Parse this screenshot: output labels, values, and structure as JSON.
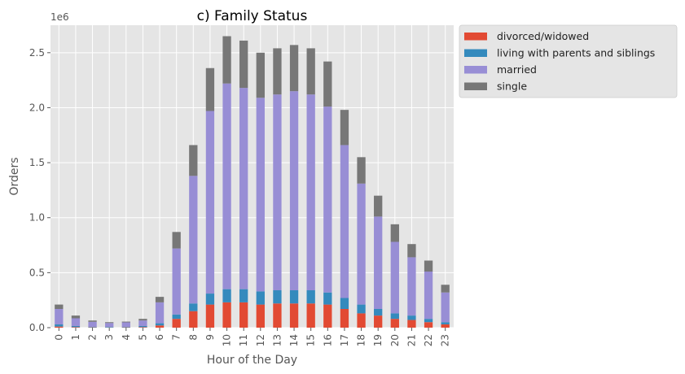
{
  "chart_data": {
    "type": "bar",
    "stacked": true,
    "title": "c) Family Status",
    "xlabel": "Hour of the Day",
    "ylabel": "Orders",
    "y_multiplier_label": "1e6",
    "ylim": [
      0,
      2.75
    ],
    "yticks": [
      0.0,
      0.5,
      1.0,
      1.5,
      2.0,
      2.5
    ],
    "ytick_labels": [
      "0.0",
      "0.5",
      "1.0",
      "1.5",
      "2.0",
      "2.5"
    ],
    "grid": true,
    "legend_position": "outside-top-right",
    "categories": [
      "0",
      "1",
      "2",
      "3",
      "4",
      "5",
      "6",
      "7",
      "8",
      "9",
      "10",
      "11",
      "12",
      "13",
      "14",
      "15",
      "16",
      "17",
      "18",
      "19",
      "20",
      "21",
      "22",
      "23"
    ],
    "series": [
      {
        "name": "divorced/widowed",
        "color": "#E24A33",
        "values": [
          0.01,
          0.005,
          0.003,
          0.002,
          0.003,
          0.005,
          0.02,
          0.08,
          0.15,
          0.21,
          0.23,
          0.23,
          0.21,
          0.22,
          0.22,
          0.22,
          0.21,
          0.17,
          0.13,
          0.11,
          0.08,
          0.07,
          0.05,
          0.03
        ]
      },
      {
        "name": "living with parents and siblings",
        "color": "#348ABD",
        "values": [
          0.02,
          0.01,
          0.005,
          0.005,
          0.005,
          0.01,
          0.02,
          0.04,
          0.07,
          0.1,
          0.12,
          0.12,
          0.12,
          0.12,
          0.12,
          0.12,
          0.11,
          0.1,
          0.08,
          0.06,
          0.05,
          0.04,
          0.03,
          0.02
        ]
      },
      {
        "name": "married",
        "color": "#988ED5",
        "values": [
          0.14,
          0.07,
          0.045,
          0.035,
          0.04,
          0.05,
          0.19,
          0.6,
          1.16,
          1.66,
          1.87,
          1.83,
          1.76,
          1.78,
          1.81,
          1.78,
          1.69,
          1.39,
          1.1,
          0.84,
          0.65,
          0.53,
          0.43,
          0.27
        ]
      },
      {
        "name": "single",
        "color": "#777777",
        "values": [
          0.04,
          0.025,
          0.012,
          0.008,
          0.007,
          0.015,
          0.05,
          0.15,
          0.28,
          0.39,
          0.43,
          0.43,
          0.41,
          0.42,
          0.42,
          0.42,
          0.41,
          0.32,
          0.24,
          0.19,
          0.16,
          0.12,
          0.1,
          0.07
        ]
      }
    ]
  }
}
